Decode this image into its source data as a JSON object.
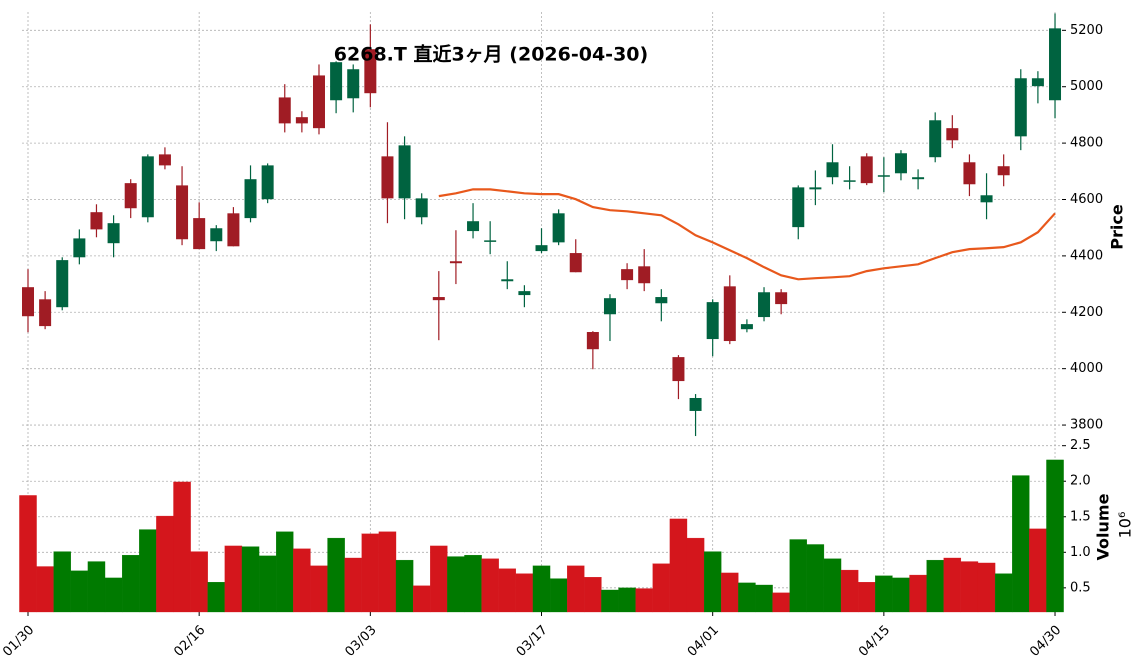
{
  "chart_data": [
    {
      "type": "candlestick",
      "title": "6268.T  直近3ヶ月  (2026-04-30)",
      "ylabel": "Price",
      "categories": [
        "01/30",
        null,
        null,
        null,
        null,
        null,
        null,
        null,
        null,
        null,
        "02/16",
        null,
        null,
        null,
        null,
        null,
        null,
        null,
        null,
        null,
        "03/03",
        null,
        null,
        null,
        null,
        null,
        null,
        null,
        null,
        null,
        "03/17",
        null,
        null,
        null,
        null,
        null,
        null,
        null,
        null,
        null,
        "04/01",
        null,
        null,
        null,
        null,
        null,
        null,
        null,
        null,
        null,
        "04/15",
        null,
        null,
        null,
        null,
        null,
        null,
        null,
        null,
        null,
        "04/30"
      ],
      "open": [
        4289,
        4246,
        4218,
        4395,
        4555,
        4445,
        4658,
        4537,
        4760,
        4650,
        4534,
        4452,
        4551,
        4534,
        4601,
        4962,
        4892,
        5040,
        4952,
        4959,
        5133,
        4753,
        4604,
        4537,
        4254,
        4381,
        4488,
        4452,
        4310,
        4261,
        4417,
        4448,
        4410,
        4130,
        4193,
        4353,
        4363,
        4232,
        4041,
        3850,
        4105,
        4292,
        4140,
        4183,
        4271,
        4502,
        4636,
        4679,
        4665,
        4753,
        4683,
        4693,
        4672,
        4750,
        4853,
        4732,
        4590,
        4718,
        4824,
        5002,
        4952
      ],
      "high": [
        4353,
        4275,
        4395,
        4494,
        4583,
        4544,
        4672,
        4760,
        4785,
        4718,
        4590,
        4509,
        4573,
        4721,
        4728,
        5009,
        4913,
        5079,
        5090,
        5079,
        5221,
        4874,
        4824,
        4622,
        4346,
        4491,
        4587,
        4523,
        4381,
        4296,
        4498,
        4565,
        4459,
        4133,
        4264,
        4374,
        4424,
        4282,
        4048,
        3910,
        4246,
        4331,
        4175,
        4289,
        4282,
        4650,
        4703,
        4796,
        4718,
        4764,
        4750,
        4775,
        4707,
        4909,
        4899,
        4760,
        4693,
        4760,
        5062,
        5055,
        5260
      ],
      "low": [
        4129,
        4140,
        4207,
        4370,
        4466,
        4395,
        4534,
        4519,
        4707,
        4438,
        4424,
        4417,
        4434,
        4519,
        4587,
        4838,
        4838,
        4831,
        4906,
        4909,
        4927,
        4516,
        4530,
        4512,
        4101,
        4300,
        4462,
        4406,
        4282,
        4218,
        4410,
        4438,
        4342,
        3998,
        4098,
        4282,
        4275,
        4168,
        3892,
        3761,
        4044,
        4087,
        4129,
        4168,
        4193,
        4459,
        4580,
        4654,
        4636,
        4651,
        4626,
        4668,
        4636,
        4732,
        4782,
        4612,
        4530,
        4647,
        4775,
        4941,
        4888
      ],
      "close": [
        4186,
        4151,
        4385,
        4462,
        4494,
        4516,
        4569,
        4753,
        4721,
        4459,
        4424,
        4498,
        4434,
        4672,
        4721,
        4870,
        4870,
        4853,
        5087,
        5062,
        4977,
        4604,
        4792,
        4604,
        4243,
        4374,
        4523,
        4455,
        4317,
        4275,
        4438,
        4551,
        4342,
        4069,
        4250,
        4314,
        4303,
        4254,
        3956,
        3896,
        4236,
        4098,
        4158,
        4271,
        4229,
        4643,
        4643,
        4732,
        4668,
        4658,
        4686,
        4764,
        4679,
        4881,
        4810,
        4654,
        4615,
        4686,
        5030,
        5030,
        5207
      ],
      "up_color": "#006340",
      "down_color": "#a01c24",
      "ma": {
        "color": "#e8581c",
        "values": [
          null,
          null,
          null,
          null,
          null,
          null,
          null,
          null,
          null,
          null,
          null,
          null,
          null,
          null,
          null,
          null,
          null,
          null,
          null,
          null,
          null,
          null,
          null,
          null,
          4612,
          4622,
          4636,
          4636,
          4629,
          4622,
          4619,
          4619,
          4601,
          4573,
          4562,
          4558,
          4551,
          4544,
          4512,
          4473,
          4448,
          4420,
          4392,
          4360,
          4331,
          4317,
          4321,
          4324,
          4328,
          4346,
          4356,
          4363,
          4370,
          4392,
          4413,
          4424,
          4427,
          4431,
          4448,
          4484,
          4551
        ]
      },
      "ylim": [
        3747,
        5265
      ],
      "yticks": [
        3800,
        4000,
        4200,
        4400,
        4600,
        4800,
        5000,
        5200
      ],
      "grid": true
    },
    {
      "type": "bar",
      "ylabel": "Volume",
      "offset_label": "10⁶",
      "values": [
        1.8,
        0.8,
        1.01,
        0.74,
        0.87,
        0.64,
        0.96,
        1.32,
        1.51,
        1.99,
        1.01,
        0.58,
        1.09,
        1.08,
        0.95,
        1.29,
        1.05,
        0.81,
        1.2,
        0.92,
        1.26,
        1.29,
        0.89,
        0.53,
        1.09,
        0.94,
        0.96,
        0.91,
        0.77,
        0.7,
        0.81,
        0.63,
        0.81,
        0.65,
        0.47,
        0.5,
        0.49,
        0.84,
        1.47,
        1.2,
        1.01,
        0.71,
        0.57,
        0.54,
        0.43,
        1.18,
        1.11,
        0.91,
        0.75,
        0.58,
        0.67,
        0.64,
        0.68,
        0.89,
        0.92,
        0.87,
        0.85,
        0.7,
        2.08,
        1.33,
        2.3
      ],
      "colors": [
        "#d4161c",
        "#d4161c",
        "#007a00",
        "#007a00",
        "#007a00",
        "#007a00",
        "#007a00",
        "#007a00",
        "#d4161c",
        "#d4161c",
        "#d4161c",
        "#007a00",
        "#d4161c",
        "#007a00",
        "#007a00",
        "#007a00",
        "#d4161c",
        "#d4161c",
        "#007a00",
        "#d4161c",
        "#d4161c",
        "#d4161c",
        "#007a00",
        "#d4161c",
        "#d4161c",
        "#007a00",
        "#007a00",
        "#d4161c",
        "#d4161c",
        "#d4161c",
        "#007a00",
        "#007a00",
        "#d4161c",
        "#d4161c",
        "#007a00",
        "#007a00",
        "#d4161c",
        "#d4161c",
        "#d4161c",
        "#d4161c",
        "#007a00",
        "#d4161c",
        "#007a00",
        "#007a00",
        "#d4161c",
        "#007a00",
        "#007a00",
        "#007a00",
        "#d4161c",
        "#d4161c",
        "#007a00",
        "#007a00",
        "#d4161c",
        "#007a00",
        "#d4161c",
        "#d4161c",
        "#d4161c",
        "#007a00",
        "#007a00",
        "#d4161c",
        "#007a00"
      ],
      "ylim": [
        0.16,
        2.58
      ],
      "yticks": [
        0.5,
        {
          "value": 1.0,
          "label": "1.0"
        },
        1.5,
        {
          "value": 2.0,
          "label": "2.0"
        },
        2.5
      ],
      "grid": true
    }
  ]
}
